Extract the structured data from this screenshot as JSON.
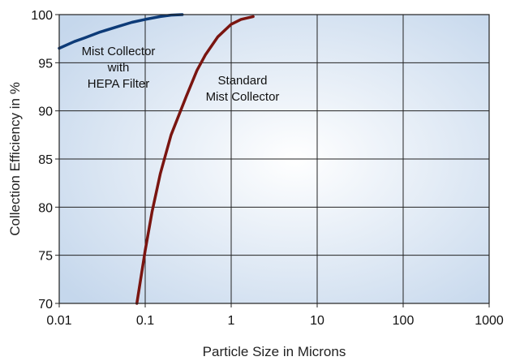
{
  "chart_data": {
    "type": "line",
    "xlabel": "Particle Size in Microns",
    "ylabel": "Collection Efficiency in %",
    "x_scale": "log",
    "xlim": [
      0.01,
      1000
    ],
    "ylim": [
      70,
      100
    ],
    "grid": true,
    "x_ticks": [
      "0.01",
      "0.1",
      "1",
      "10",
      "100",
      "1000"
    ],
    "y_ticks": [
      "70",
      "75",
      "80",
      "85",
      "90",
      "95",
      "100"
    ],
    "annotations": [
      {
        "id": "hepa",
        "lines": [
          "Mist Collector",
          "with",
          "HEPA Filter"
        ]
      },
      {
        "id": "standard",
        "lines": [
          "Standard",
          "Mist Collector"
        ]
      }
    ],
    "series": [
      {
        "color": "#0d3b78",
        "x": [
          0.01,
          0.015,
          0.02,
          0.03,
          0.05,
          0.07,
          0.1,
          0.15,
          0.2,
          0.27
        ],
        "y": [
          96.5,
          97.2,
          97.6,
          98.2,
          98.8,
          99.2,
          99.5,
          99.8,
          99.95,
          100
        ]
      },
      {
        "color": "#7a1510",
        "x": [
          0.08,
          0.1,
          0.12,
          0.15,
          0.2,
          0.3,
          0.4,
          0.5,
          0.7,
          1.0,
          1.3,
          1.8
        ],
        "y": [
          70,
          75.5,
          79.5,
          83.5,
          87.5,
          91.5,
          94.2,
          95.8,
          97.7,
          99.0,
          99.5,
          99.8
        ]
      }
    ]
  }
}
